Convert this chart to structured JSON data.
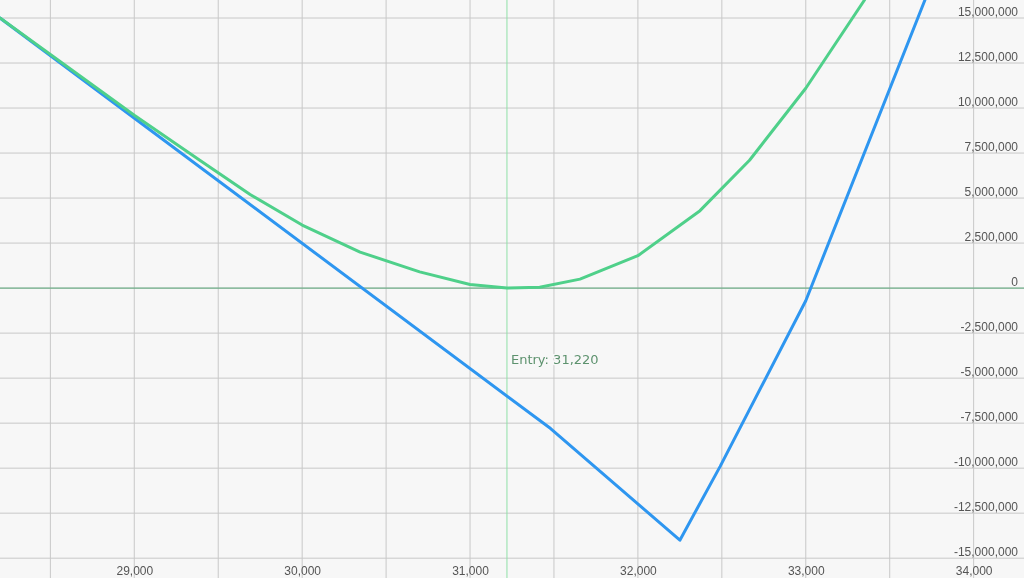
{
  "chart_data": {
    "type": "line",
    "xlim": [
      28200,
      34300
    ],
    "ylim": [
      -16100000,
      16000000
    ],
    "xticks": [
      {
        "value": 28500,
        "label": null
      },
      {
        "value": 29000,
        "label": "29,000"
      },
      {
        "value": 29500,
        "label": null
      },
      {
        "value": 30000,
        "label": "30,000"
      },
      {
        "value": 30500,
        "label": null
      },
      {
        "value": 31000,
        "label": "31,000"
      },
      {
        "value": 31500,
        "label": null
      },
      {
        "value": 32000,
        "label": "32,000"
      },
      {
        "value": 32500,
        "label": null
      },
      {
        "value": 33000,
        "label": "33,000"
      },
      {
        "value": 33500,
        "label": null
      },
      {
        "value": 34000,
        "label": "34,000"
      }
    ],
    "yticks": [
      {
        "value": -15000000,
        "label": "-15,000,000"
      },
      {
        "value": -12500000,
        "label": "-12,500,000"
      },
      {
        "value": -10000000,
        "label": "-10,000,000"
      },
      {
        "value": -7500000,
        "label": "-7,500,000"
      },
      {
        "value": -5000000,
        "label": "-5,000,000"
      },
      {
        "value": -2500000,
        "label": "-2,500,000"
      },
      {
        "value": 0,
        "label": "0"
      },
      {
        "value": 2500000,
        "label": "2,500,000"
      },
      {
        "value": 5000000,
        "label": "5,000,000"
      },
      {
        "value": 7500000,
        "label": "7,500,000"
      },
      {
        "value": 10000000,
        "label": "10,000,000"
      },
      {
        "value": 12500000,
        "label": "12,500,000"
      },
      {
        "value": 15000000,
        "label": "15,000,000"
      }
    ],
    "grid": true,
    "marker": "none",
    "line_style": "solid",
    "ref_lines": [
      {
        "axis": "x",
        "value": 31220,
        "label": "Entry: 31,220",
        "color": "#8fe0a8"
      },
      {
        "axis": "y",
        "value": 0,
        "label": null,
        "color": "#5aa87a"
      }
    ],
    "series": [
      {
        "color": "#2e96f0",
        "x": [
          28200,
          31480,
          32250,
          32490,
          33000,
          33710
        ],
        "values": [
          15000000,
          -7800000,
          -14000000,
          -9900000,
          -700000,
          16000000
        ]
      },
      {
        "color": "#4fd08a",
        "x": [
          28200,
          29000,
          29390,
          29690,
          30000,
          30345,
          30700,
          31000,
          31220,
          31415,
          31655,
          32000,
          32370,
          32665,
          33000,
          33350
        ],
        "values": [
          15000000,
          9600000,
          7100000,
          5200000,
          3500000,
          2000000,
          900000,
          200000,
          0,
          50000,
          500000,
          1800000,
          4300000,
          7100000,
          11100000,
          16000000
        ]
      }
    ]
  }
}
